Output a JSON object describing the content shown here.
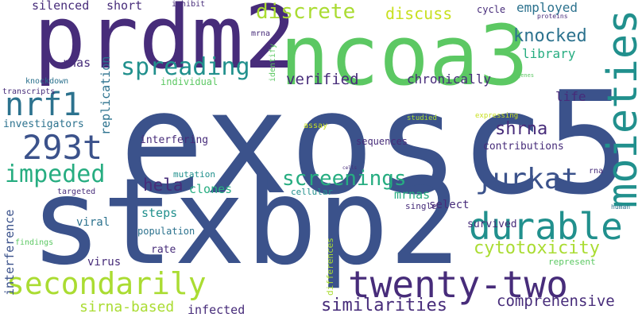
{
  "palette": {
    "background": "#ffffff",
    "dark_purple": "#472c7a",
    "blue": "#3b528b",
    "teal_blue": "#2c728e",
    "teal": "#21908d",
    "green": "#27ad81",
    "light_green": "#5cc863",
    "lime": "#aadc32",
    "yellow_green": "#c8e020"
  },
  "words": {
    "exosc5": "exosc5",
    "stxbp2": "stxbp2",
    "prdm2": "prdm2",
    "ncoa3": "ncoa3",
    "moieties": "moieties",
    "durable": "durable",
    "twenty_two": "twenty-two",
    "secondarily": "secondarily",
    "nrf1": "nrf1",
    "t293": "293t",
    "spreading": "spreading",
    "jurkat": "jurkat",
    "impeded": "impeded",
    "discrete": "discrete",
    "screenings": "screenings",
    "knocked": "knocked",
    "cytotoxicity": "cytotoxicity",
    "similarities": "similarities",
    "verified": "verified",
    "hela": "hela",
    "shrna": "shrna",
    "discuss": "discuss",
    "comprehensive": "comprehensive",
    "sirna_based": "sirna-based",
    "chronically": "chronically",
    "employed": "employed",
    "library": "library",
    "replication": "replication",
    "clones": "clones",
    "steps": "steps",
    "mrnas": "mrnas",
    "select": "select",
    "life": "life",
    "silenced": "silenced",
    "short": "short",
    "rnas": "rnas",
    "investigators": "investigators",
    "interference": "interference",
    "infected": "infected",
    "viral": "viral",
    "virus": "virus",
    "contributions": "contributions",
    "survived": "survived",
    "interfering": "interfering",
    "sequences": "sequences",
    "individual": "individual",
    "rate": "rate",
    "population": "population",
    "represent": "represent",
    "cycle": "cycle",
    "knockdown": "knockdown",
    "transcripts": "transcripts",
    "mutation": "mutation",
    "cellular": "cellular",
    "targeted": "targeted",
    "findings": "findings",
    "single": "single",
    "differences": "differences",
    "assay": "assay",
    "studied": "studied",
    "expressing": "expressing",
    "identify": "identify",
    "inhibit": "inhibit",
    "mrna": "mrna",
    "proteins": "proteins",
    "genes": "genes",
    "rna": "rna",
    "human": "human",
    "cells": "cells"
  }
}
